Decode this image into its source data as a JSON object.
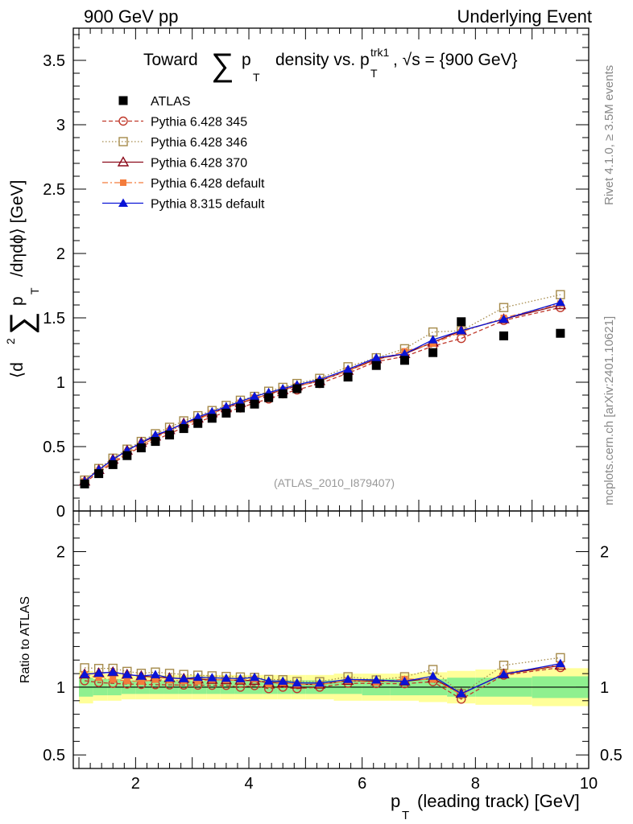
{
  "header": {
    "left": "900 GeV pp",
    "right": "Underlying Event"
  },
  "side_text": {
    "rivet": "Rivet 4.1.0, ≥ 3.5M events",
    "mcplots": "mcplots.cern.ch [arXiv:2401.10621]"
  },
  "watermark": "(ATLAS_2010_I879407)",
  "colors": {
    "atlas": "#000000",
    "p345": "#c0392b",
    "p346": "#a58a4a",
    "p370": "#8b0a1a",
    "pdefault": "#f47c3c",
    "p8": "#0a14d6",
    "band_inner": "#8ff08f",
    "band_outer": "#ffff99"
  },
  "chart_data": {
    "type": "line",
    "title": "Toward ∑ p_T density vs. p_T^trk1, √s = {900 GeV}",
    "title_parts": {
      "a": "Toward",
      "sigma": "∑",
      "p": "p",
      "T": "T",
      "b": "density vs. p",
      "trk1": "trk1",
      "c": ", √s = {900 GeV}"
    },
    "xlabel": "p_T (leading track) [GeV]",
    "xlabel_parts": {
      "p": "p",
      "T": "T",
      "rest": "(leading track) [GeV]"
    },
    "ylabel": "⟨d² ∑ p_T /dηdϕ⟩ [GeV]",
    "ylabel_parts": {
      "a": "⟨d",
      "two": "2",
      "sigma": "∑",
      "p": "p",
      "T": "T",
      "b": "/dηdϕ⟩ [GeV]"
    },
    "ratio_ylabel": "Ratio to ATLAS",
    "xlim": [
      0.9,
      10.0
    ],
    "ylim": [
      0,
      3.75
    ],
    "ratio_ylim": [
      0.4,
      2.3
    ],
    "x_ticks": [
      "2",
      "4",
      "6",
      "8",
      "10"
    ],
    "y_ticks": [
      "0",
      "0.5",
      "1",
      "1.5",
      "2",
      "2.5",
      "3",
      "3.5"
    ],
    "ratio_y_ticks": [
      "0.5",
      "1",
      "2"
    ],
    "x": [
      1.1,
      1.35,
      1.6,
      1.85,
      2.1,
      2.35,
      2.6,
      2.85,
      3.1,
      3.35,
      3.6,
      3.85,
      4.1,
      4.35,
      4.6,
      4.85,
      5.25,
      5.75,
      6.25,
      6.75,
      7.25,
      7.75,
      8.5,
      9.5
    ],
    "bin_edges": [
      1.0,
      1.25,
      1.5,
      1.75,
      2.0,
      2.25,
      2.5,
      2.75,
      3.0,
      3.25,
      3.5,
      3.75,
      4.0,
      4.25,
      4.5,
      4.75,
      5.0,
      5.5,
      6.0,
      6.5,
      7.0,
      7.5,
      8.0,
      9.0,
      10.0
    ],
    "series": [
      {
        "name": "ATLAS",
        "key": "atlas",
        "marker": "square-filled",
        "line": "none",
        "values": [
          0.21,
          0.29,
          0.36,
          0.43,
          0.49,
          0.54,
          0.59,
          0.64,
          0.68,
          0.72,
          0.76,
          0.8,
          0.83,
          0.88,
          0.91,
          0.95,
          0.99,
          1.04,
          1.13,
          1.17,
          1.23,
          1.47,
          1.36,
          1.38
        ]
      },
      {
        "name": "Pythia 6.428 345",
        "key": "p345",
        "marker": "circle-open",
        "line": "dashed",
        "values": [
          0.22,
          0.3,
          0.37,
          0.44,
          0.5,
          0.55,
          0.6,
          0.65,
          0.69,
          0.73,
          0.77,
          0.8,
          0.84,
          0.87,
          0.91,
          0.94,
          0.99,
          1.07,
          1.16,
          1.2,
          1.28,
          1.34,
          1.48,
          1.58
        ]
      },
      {
        "name": "Pythia 6.428 346",
        "key": "p346",
        "marker": "square-open",
        "line": "dotted",
        "values": [
          0.24,
          0.33,
          0.41,
          0.48,
          0.54,
          0.6,
          0.65,
          0.7,
          0.74,
          0.78,
          0.82,
          0.86,
          0.89,
          0.93,
          0.96,
          0.99,
          1.03,
          1.12,
          1.19,
          1.26,
          1.39,
          1.4,
          1.58,
          1.68
        ]
      },
      {
        "name": "Pythia 6.428 370",
        "key": "p370",
        "marker": "triangle-open",
        "line": "solid",
        "values": [
          0.23,
          0.32,
          0.4,
          0.47,
          0.53,
          0.58,
          0.63,
          0.68,
          0.72,
          0.76,
          0.8,
          0.84,
          0.87,
          0.91,
          0.94,
          0.97,
          1.01,
          1.09,
          1.18,
          1.22,
          1.31,
          1.4,
          1.49,
          1.6
        ]
      },
      {
        "name": "Pythia 6.428 default",
        "key": "pdefault",
        "marker": "square-filled-small",
        "line": "dashdot",
        "values": [
          0.23,
          0.31,
          0.38,
          0.45,
          0.51,
          0.57,
          0.62,
          0.67,
          0.71,
          0.76,
          0.8,
          0.84,
          0.88,
          0.9,
          0.94,
          0.97,
          1.01,
          1.09,
          1.17,
          1.24,
          1.3,
          1.39,
          1.5,
          1.61
        ]
      },
      {
        "name": "Pythia 8.315 default",
        "key": "p8",
        "marker": "triangle-filled",
        "line": "solid",
        "values": [
          0.23,
          0.32,
          0.4,
          0.47,
          0.53,
          0.59,
          0.63,
          0.68,
          0.73,
          0.77,
          0.81,
          0.85,
          0.89,
          0.92,
          0.95,
          0.98,
          1.02,
          1.1,
          1.19,
          1.22,
          1.33,
          1.4,
          1.49,
          1.62
        ]
      }
    ],
    "ratio_band_inner": [
      0.07,
      0.06,
      0.06,
      0.05,
      0.05,
      0.05,
      0.05,
      0.05,
      0.05,
      0.05,
      0.05,
      0.05,
      0.05,
      0.05,
      0.05,
      0.05,
      0.05,
      0.05,
      0.06,
      0.06,
      0.06,
      0.07,
      0.07,
      0.08
    ],
    "ratio_band_outer": [
      0.12,
      0.1,
      0.1,
      0.09,
      0.09,
      0.09,
      0.09,
      0.09,
      0.09,
      0.09,
      0.09,
      0.09,
      0.09,
      0.09,
      0.09,
      0.09,
      0.09,
      0.1,
      0.1,
      0.1,
      0.11,
      0.12,
      0.13,
      0.14
    ],
    "legend_position": "top-left"
  }
}
